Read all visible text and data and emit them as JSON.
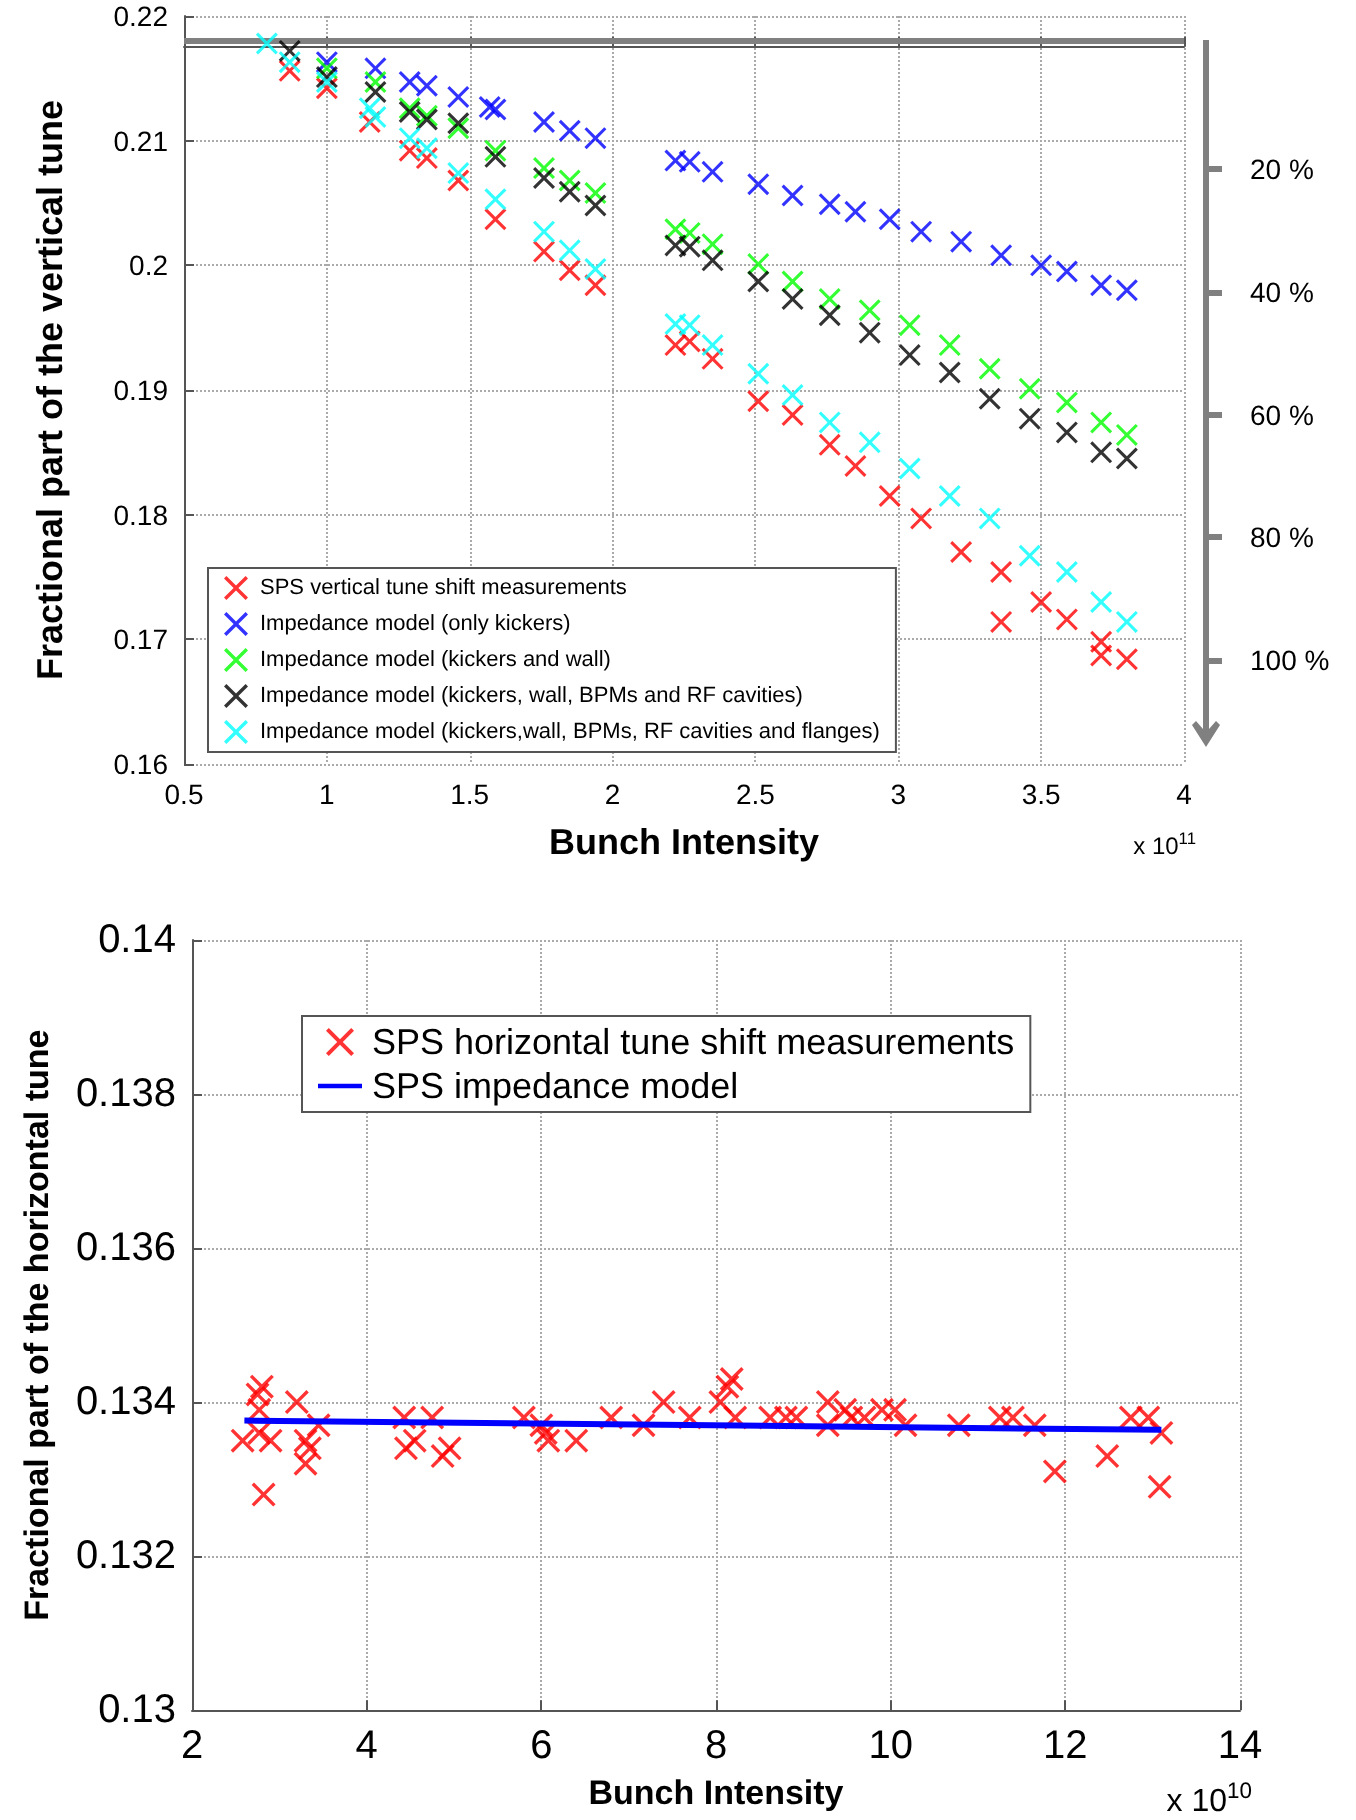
{
  "chart_data": [
    {
      "type": "scatter",
      "xlabel": "Bunch Intensity",
      "ylabel": "Fractional part of the vertical tune",
      "xlim": [
        0.5,
        4
      ],
      "xticks": [
        0.5,
        1,
        1.5,
        2,
        2.5,
        3,
        3.5,
        4
      ],
      "ylim": [
        0.16,
        0.22
      ],
      "yticks": [
        0.16,
        0.17,
        0.18,
        0.19,
        0.2,
        0.21,
        0.22
      ],
      "y2lim": [
        117,
        -5
      ],
      "y2ticks": [
        {
          "value": 20,
          "label": "20 %"
        },
        {
          "value": 40,
          "label": "40 %"
        },
        {
          "value": 60,
          "label": "60 %"
        },
        {
          "value": 80,
          "label": "80 %"
        },
        {
          "value": 100,
          "label": "100 %"
        }
      ],
      "ref_lines": [
        {
          "axis": "y",
          "value": 0.218,
          "label": null,
          "color": "#808080"
        }
      ],
      "grid": true,
      "legend": "bottom left",
      "marker": "cross",
      "annotations": [
        "x 10$^{11}$"
      ],
      "series": [
        {
          "name": "SPS vertical tune shift measurements",
          "color": "#ff0000",
          "x": [
            0.87,
            1.0,
            1.15,
            1.29,
            1.35,
            1.46,
            1.59,
            1.76,
            1.85,
            1.94,
            2.22,
            2.27,
            2.35,
            2.51,
            2.63,
            2.76,
            2.85,
            2.97,
            3.08,
            3.22,
            3.36,
            3.36,
            3.5,
            3.59,
            3.71,
            3.71,
            3.8
          ],
          "values": [
            0.2156,
            0.2142,
            0.2115,
            0.2092,
            0.2086,
            0.2068,
            0.2037,
            0.2011,
            0.1996,
            0.1984,
            0.1936,
            0.1939,
            0.1925,
            0.1891,
            0.188,
            0.1856,
            0.1839,
            0.1815,
            0.1797,
            0.177,
            0.1714,
            0.1754,
            0.173,
            0.1716,
            0.1698,
            0.1687,
            0.1684
          ]
        },
        {
          "name": "Impedance model (only kickers)",
          "color": "#0000ff",
          "x": [
            1.0,
            1.17,
            1.29,
            1.35,
            1.46,
            1.57,
            1.59,
            1.76,
            1.85,
            1.94,
            2.22,
            2.27,
            2.35,
            2.51,
            2.63,
            2.76,
            2.85,
            2.97,
            3.08,
            3.22,
            3.36,
            3.5,
            3.59,
            3.71,
            3.8
          ],
          "values": [
            0.2163,
            0.2158,
            0.2147,
            0.2144,
            0.2135,
            0.2127,
            0.2125,
            0.2115,
            0.2108,
            0.2102,
            0.2084,
            0.2083,
            0.2075,
            0.2065,
            0.2056,
            0.2049,
            0.2043,
            0.2037,
            0.2027,
            0.2019,
            0.2008,
            0.2,
            0.1995,
            0.1984,
            0.198
          ]
        },
        {
          "name": "Impedance model (kickers and wall)",
          "color": "#00ff00",
          "x": [
            1.0,
            1.17,
            1.29,
            1.35,
            1.46,
            1.59,
            1.76,
            1.85,
            1.94,
            2.22,
            2.27,
            2.35,
            2.51,
            2.63,
            2.76,
            2.9,
            3.04,
            3.18,
            3.32,
            3.46,
            3.59,
            3.71,
            3.8
          ],
          "values": [
            0.2158,
            0.2147,
            0.2126,
            0.212,
            0.211,
            0.2092,
            0.2078,
            0.2068,
            0.2058,
            0.2029,
            0.2026,
            0.2017,
            0.2001,
            0.1987,
            0.1973,
            0.1964,
            0.1952,
            0.1936,
            0.1917,
            0.1901,
            0.189,
            0.1874,
            0.1864
          ]
        },
        {
          "name": "Impedance model (kickers, wall, BPMs and RF cavities)",
          "color": "#000000",
          "x": [
            0.87,
            1.0,
            1.17,
            1.29,
            1.35,
            1.46,
            1.59,
            1.76,
            1.85,
            1.94,
            2.22,
            2.27,
            2.35,
            2.51,
            2.63,
            2.76,
            2.9,
            3.04,
            3.18,
            3.32,
            3.46,
            3.59,
            3.71,
            3.8
          ],
          "values": [
            0.2172,
            0.2151,
            0.2139,
            0.2123,
            0.2117,
            0.2114,
            0.2087,
            0.207,
            0.2059,
            0.2048,
            0.2016,
            0.2015,
            0.2004,
            0.1987,
            0.1973,
            0.196,
            0.1946,
            0.1928,
            0.1914,
            0.1893,
            0.1877,
            0.1866,
            0.185,
            0.1845
          ]
        },
        {
          "name": "Impedance model (kickers,wall, BPMs, RF cavities and flanges)",
          "color": "#00ffff",
          "x": [
            0.79,
            0.87,
            1.0,
            1.15,
            1.17,
            1.29,
            1.35,
            1.46,
            1.59,
            1.76,
            1.85,
            1.94,
            2.22,
            2.27,
            2.35,
            2.51,
            2.63,
            2.76,
            2.9,
            3.04,
            3.18,
            3.32,
            3.46,
            3.59,
            3.71,
            3.8
          ],
          "values": [
            0.2178,
            0.2163,
            0.2147,
            0.2126,
            0.2119,
            0.2102,
            0.2094,
            0.2074,
            0.2053,
            0.2027,
            0.2012,
            0.1997,
            0.1953,
            0.1952,
            0.1936,
            0.1913,
            0.1896,
            0.1874,
            0.1858,
            0.1837,
            0.1815,
            0.1797,
            0.1767,
            0.1754,
            0.173,
            0.1714
          ]
        }
      ]
    },
    {
      "type": "scatter",
      "xlabel": "Bunch Intensity",
      "ylabel": "Fractional part of the horizontal tune",
      "xlim": [
        2,
        14
      ],
      "xticks": [
        2,
        4,
        6,
        8,
        10,
        12,
        14
      ],
      "ylim": [
        0.13,
        0.14
      ],
      "yticks": [
        0.13,
        0.132,
        0.134,
        0.136,
        0.138,
        0.14
      ],
      "grid": true,
      "legend": "top",
      "marker": "cross",
      "annotations": [
        "x 10$^{10}$"
      ],
      "series": [
        {
          "name": "SPS horizontal tune shift measurements",
          "color": "#ff0000",
          "x": [
            2.58,
            2.75,
            2.8,
            2.77,
            2.77,
            2.9,
            2.82,
            3.2,
            3.3,
            3.3,
            3.35,
            3.45,
            4.43,
            4.45,
            4.55,
            4.75,
            4.87,
            4.95,
            5.8,
            6.0,
            6.05,
            6.08,
            6.4,
            6.8,
            7.17,
            7.4,
            7.7,
            8.05,
            8.13,
            8.18,
            8.22,
            8.62,
            8.8,
            8.92,
            9.28,
            9.28,
            9.48,
            9.55,
            9.7,
            9.9,
            10.05,
            10.17,
            10.78,
            11.25,
            11.4,
            11.65,
            11.88,
            12.48,
            12.75,
            12.95,
            13.1,
            13.08
          ],
          "values": [
            0.1335,
            0.1341,
            0.1342,
            0.1339,
            0.1336,
            0.1335,
            0.1328,
            0.134,
            0.1335,
            0.1332,
            0.1334,
            0.1337,
            0.1338,
            0.1334,
            0.1335,
            0.1338,
            0.1333,
            0.1334,
            0.1338,
            0.1337,
            0.1336,
            0.1335,
            0.1335,
            0.1338,
            0.1337,
            0.134,
            0.1338,
            0.134,
            0.1342,
            0.1343,
            0.1338,
            0.1338,
            0.1338,
            0.1338,
            0.134,
            0.1337,
            0.1339,
            0.1338,
            0.1338,
            0.1339,
            0.1339,
            0.1337,
            0.1337,
            0.1338,
            0.1338,
            0.1337,
            0.1331,
            0.1333,
            0.1338,
            0.1338,
            0.1336,
            0.1329
          ]
        },
        {
          "name": "SPS impedance model",
          "type": "line",
          "marker": "none",
          "color": "#0000ff",
          "x": [
            2.6,
            13.1
          ],
          "values": [
            0.13376,
            0.13364
          ]
        }
      ]
    }
  ]
}
